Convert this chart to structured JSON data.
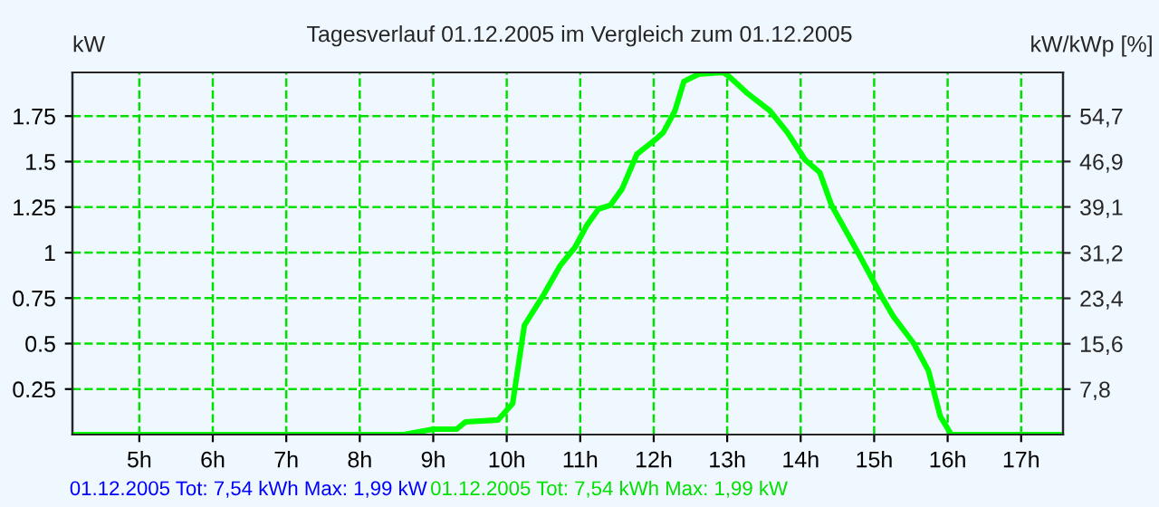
{
  "chart_data": {
    "type": "line",
    "title": "Tagesverlauf 01.12.2005 im Vergleich zum 01.12.2005",
    "ylabel": "kW",
    "y2label": "kW/kWp [%]",
    "annotations": [
      "01.12.2005 Tot: 7,54 kWh Max: 1,99 kW",
      "01.12.2005 Tot: 7,54 kWh Max: 1,99 kW"
    ],
    "series": [
      {
        "color": "#00ff00",
        "x": [
          4.09,
          8.6,
          9.0,
          9.32,
          9.44,
          9.88,
          10.08,
          10.24,
          10.49,
          10.73,
          10.93,
          11.09,
          11.25,
          11.41,
          11.57,
          11.77,
          12.05,
          12.13,
          12.29,
          12.41,
          12.61,
          12.94,
          13.02,
          13.26,
          13.58,
          13.82,
          14.06,
          14.26,
          14.42,
          14.78,
          15.1,
          15.26,
          15.54,
          15.74,
          15.9,
          16.05,
          17.57
        ],
        "values": [
          0,
          0,
          0.03,
          0.03,
          0.07,
          0.08,
          0.17,
          0.6,
          0.76,
          0.93,
          1.03,
          1.15,
          1.24,
          1.26,
          1.35,
          1.54,
          1.63,
          1.66,
          1.78,
          1.94,
          1.98,
          1.99,
          1.97,
          1.88,
          1.78,
          1.66,
          1.51,
          1.44,
          1.26,
          1.0,
          0.76,
          0.65,
          0.5,
          0.35,
          0.1,
          0,
          0
        ]
      }
    ],
    "xlim": [
      4.09,
      17.57
    ],
    "xticks": [
      {
        "value": 5,
        "label": "5h"
      },
      {
        "value": 6,
        "label": "6h"
      },
      {
        "value": 7,
        "label": "7h"
      },
      {
        "value": 8,
        "label": "8h"
      },
      {
        "value": 9,
        "label": "9h"
      },
      {
        "value": 10,
        "label": "10h"
      },
      {
        "value": 11,
        "label": "11h"
      },
      {
        "value": 12,
        "label": "12h"
      },
      {
        "value": 13,
        "label": "13h"
      },
      {
        "value": 14,
        "label": "14h"
      },
      {
        "value": 15,
        "label": "15h"
      },
      {
        "value": 16,
        "label": "16h"
      },
      {
        "value": 17,
        "label": "17h"
      }
    ],
    "ylim": [
      0,
      1.99
    ],
    "yticks": [
      0.25,
      0.5,
      0.75,
      1,
      1.25,
      1.5,
      1.75
    ],
    "y2lim": [
      0,
      62.2
    ],
    "y2ticks": [
      {
        "value": 7.8,
        "label": "7,8"
      },
      {
        "value": 15.6,
        "label": "15,6"
      },
      {
        "value": 23.4,
        "label": "23,4"
      },
      {
        "value": 31.2,
        "label": "31,2"
      },
      {
        "value": 39.1,
        "label": "39,1"
      },
      {
        "value": 46.9,
        "label": "46,9"
      },
      {
        "value": 54.7,
        "label": "54,7"
      }
    ],
    "grid": true,
    "line_style": "solid"
  }
}
